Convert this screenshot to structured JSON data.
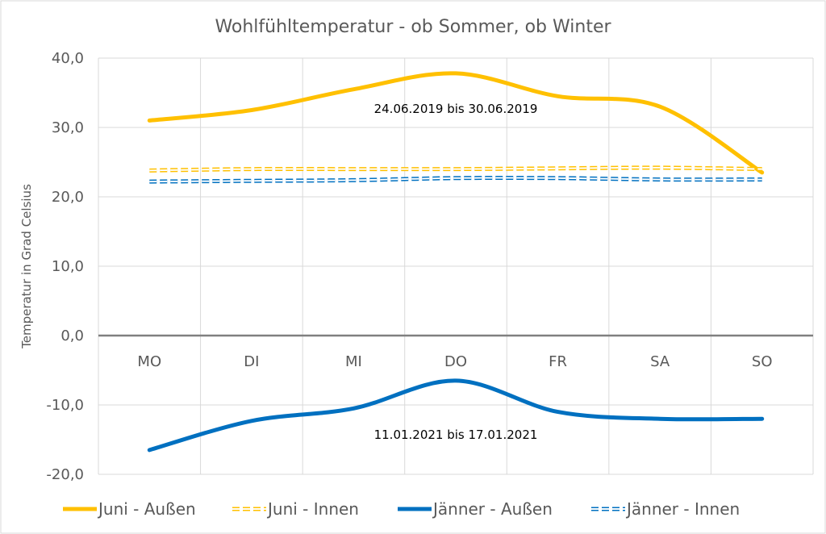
{
  "chart_data": {
    "type": "line",
    "title": "Wohlfühltemperatur  - ob Sommer, ob Winter",
    "xlabel": "",
    "ylabel": "Temperatur in Grad Celsius",
    "categories": [
      "MO",
      "DI",
      "MI",
      "DO",
      "FR",
      "SA",
      "SO"
    ],
    "ylim": [
      -20,
      40
    ],
    "yticks": [
      "40,0",
      "30,0",
      "20,0",
      "10,0",
      "0,0",
      "-10,0",
      "-20,0"
    ],
    "ytick_values": [
      40,
      30,
      20,
      10,
      0,
      -10,
      -20
    ],
    "grid": "vertical-and-horizontal",
    "legend_position": "bottom",
    "series": [
      {
        "name": "Juni - Außen",
        "values": [
          31.0,
          32.5,
          35.5,
          37.8,
          34.5,
          33.0,
          23.5
        ],
        "color": "#FFC000",
        "style": "solid"
      },
      {
        "name": "Juni - Innen",
        "values": [
          23.8,
          24.0,
          24.0,
          24.0,
          24.1,
          24.2,
          24.0
        ],
        "color": "#FFC000",
        "style": "double"
      },
      {
        "name": "Jänner - Außen",
        "values": [
          -16.5,
          -12.3,
          -10.5,
          -6.5,
          -11.0,
          -12.0,
          -12.0
        ],
        "color": "#0070C0",
        "style": "solid"
      },
      {
        "name": "Jänner - Innen",
        "values": [
          22.2,
          22.3,
          22.4,
          22.7,
          22.7,
          22.5,
          22.5
        ],
        "color": "#0070C0",
        "style": "double"
      }
    ],
    "annotations": [
      {
        "text": "24.06.2019 bis 30.06.2019",
        "x": "DO",
        "y": 32.1
      },
      {
        "text": "11.01.2021 bis 17.01.2021",
        "x": "DO",
        "y": -14.9
      }
    ]
  }
}
